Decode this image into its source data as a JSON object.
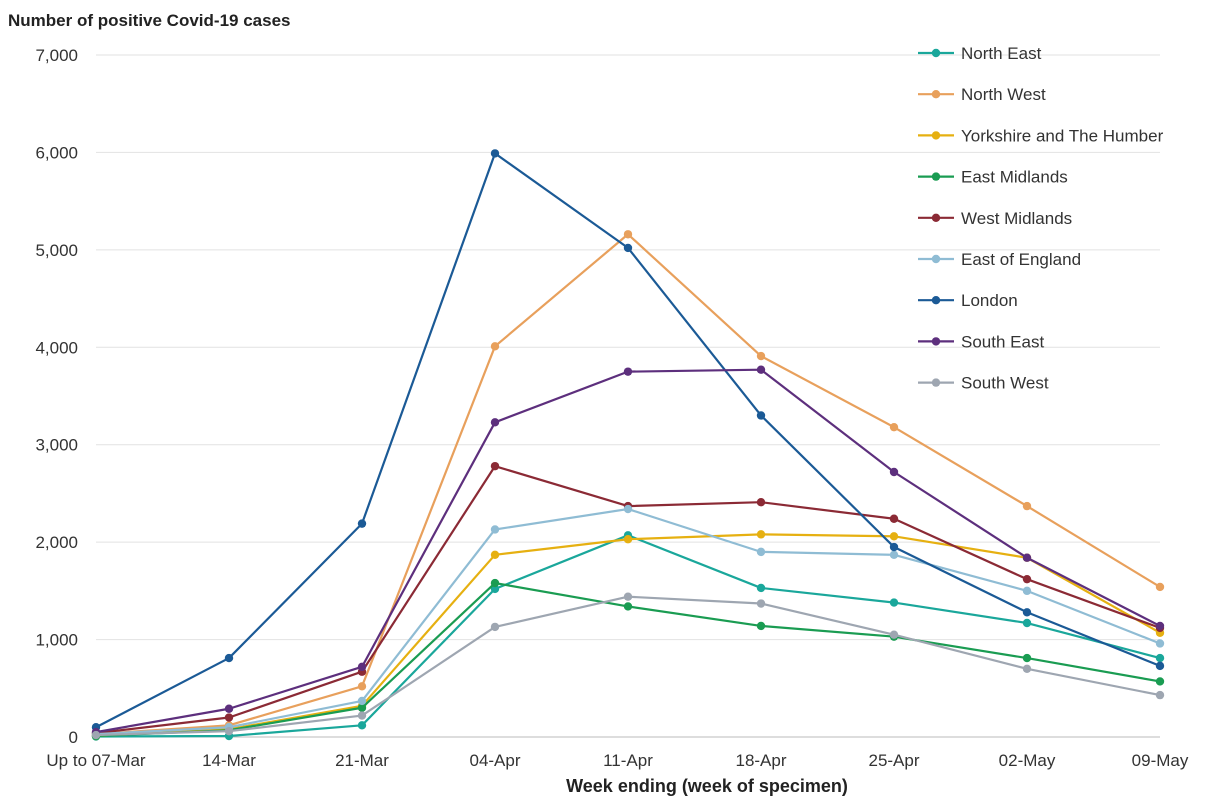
{
  "chart_data": {
    "type": "line",
    "title": "Number of positive Covid-19 cases",
    "xlabel": "Week ending (week of specimen)",
    "ylabel": "",
    "ylim": [
      0,
      7000
    ],
    "yticks": [
      0,
      1000,
      2000,
      3000,
      4000,
      5000,
      6000,
      7000
    ],
    "ytick_labels": [
      "0",
      "1,000",
      "2,000",
      "3,000",
      "4,000",
      "5,000",
      "6,000",
      "7,000"
    ],
    "categories": [
      "Up to 07-Mar",
      "14-Mar",
      "21-Mar",
      "04-Apr",
      "11-Apr",
      "18-Apr",
      "25-Apr",
      "02-May",
      "09-May"
    ],
    "grid": "horizontal",
    "legend_position": "top-right",
    "series": [
      {
        "name": "North East",
        "color": "#1aa79b",
        "values": [
          5,
          10,
          120,
          1520,
          2070,
          1530,
          1380,
          1170,
          810
        ]
      },
      {
        "name": "North West",
        "color": "#e8a05c",
        "values": [
          30,
          120,
          520,
          4010,
          5160,
          3910,
          3180,
          2370,
          1540
        ]
      },
      {
        "name": "Yorkshire and The Humber",
        "color": "#e6b011",
        "values": [
          10,
          80,
          320,
          1870,
          2030,
          2080,
          2060,
          1840,
          1070
        ]
      },
      {
        "name": "East Midlands",
        "color": "#1a9c52",
        "values": [
          10,
          70,
          300,
          1580,
          1340,
          1140,
          1030,
          810,
          570
        ]
      },
      {
        "name": "West Midlands",
        "color": "#8b2a35",
        "values": [
          40,
          200,
          670,
          2780,
          2370,
          2410,
          2240,
          1620,
          1120
        ]
      },
      {
        "name": "East of England",
        "color": "#8fbcd4",
        "values": [
          30,
          100,
          370,
          2130,
          2340,
          1900,
          1870,
          1500,
          960
        ]
      },
      {
        "name": "London",
        "color": "#1b5a96",
        "values": [
          100,
          810,
          2190,
          5990,
          5020,
          3300,
          1950,
          1280,
          730
        ]
      },
      {
        "name": "South East",
        "color": "#5d2f7d",
        "values": [
          50,
          290,
          720,
          3230,
          3750,
          3770,
          2720,
          1840,
          1140
        ]
      },
      {
        "name": "South West",
        "color": "#9ea6b1",
        "values": [
          20,
          60,
          220,
          1130,
          1440,
          1370,
          1050,
          700,
          430
        ]
      }
    ]
  }
}
